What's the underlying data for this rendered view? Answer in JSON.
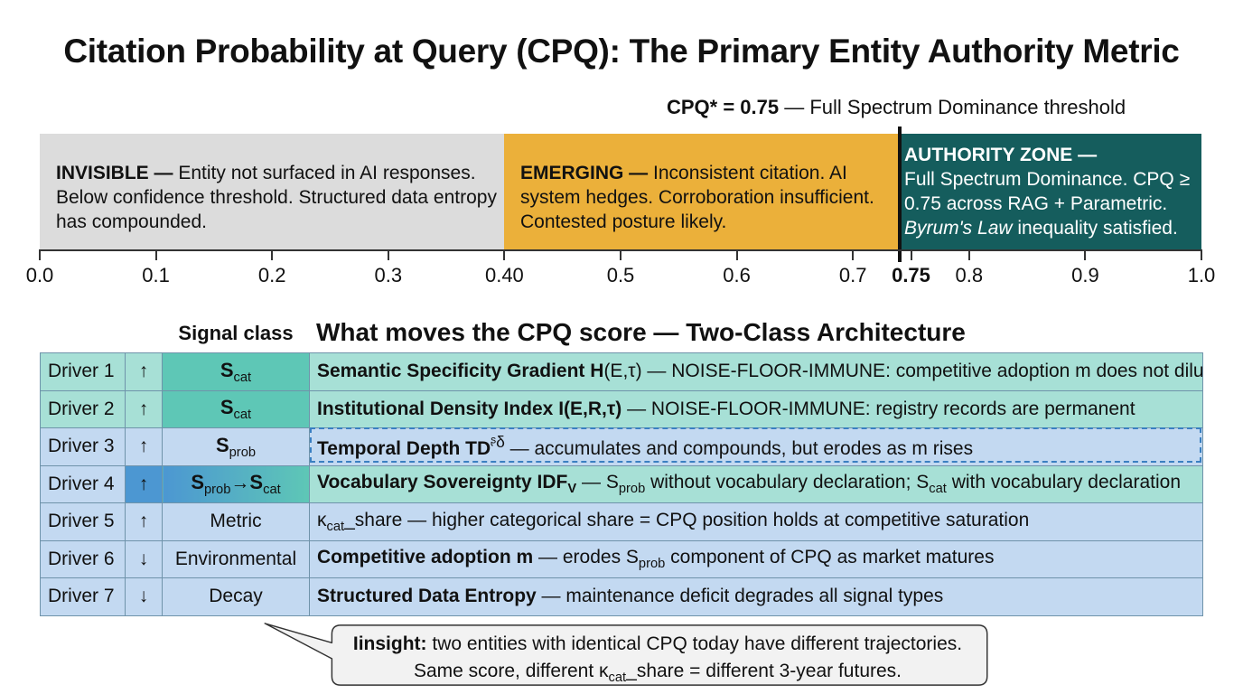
{
  "title": "Citation Probability at Query (CPQ): The Primary Entity Authority Metric",
  "threshold": {
    "label_bold": "CPQ* = 0.75",
    "label_rest": " — Full Spectrum Dominance threshold"
  },
  "zones": [
    {
      "name": "INVISIBLE —",
      "text": " Entity not surfaced in AI responses.  Below confidence threshold. Structured data entropy has compounded.",
      "range": [
        0.0,
        0.4
      ],
      "color": "#dcdcdc"
    },
    {
      "name": "EMERGING —",
      "text": " Inconsistent citation. AI system hedges. Corroboration insufficient. Contested posture likely.",
      "range": [
        0.4,
        0.75
      ],
      "color": "#ebb03a"
    },
    {
      "name": "AUTHORITY ZONE —",
      "text_line1": "Full Spectrum Dominance. CPQ ≥ 0.75 across RAG + Parametric.",
      "text_italic": "Byrum's Law",
      "text_line2": " inequality satisfied.",
      "range": [
        0.75,
        1.0
      ],
      "color": "#155d5d"
    }
  ],
  "axis_ticks": [
    {
      "label": "0.0",
      "value": 0.0
    },
    {
      "label": "0.1",
      "value": 0.1
    },
    {
      "label": "0.2",
      "value": 0.2
    },
    {
      "label": "0.3",
      "value": 0.3
    },
    {
      "label": "0.40",
      "value": 0.4
    },
    {
      "label": "0.5",
      "value": 0.5
    },
    {
      "label": "0.6",
      "value": 0.6
    },
    {
      "label": "0.7",
      "value": 0.7
    },
    {
      "label": "0.75",
      "value": 0.75,
      "bold": true
    },
    {
      "label": "0.8",
      "value": 0.8
    },
    {
      "label": "0.9",
      "value": 0.9
    },
    {
      "label": "1.0",
      "value": 1.0
    }
  ],
  "signal_class_header": "Signal class",
  "drivers_title": "What moves the CPQ score — Two-Class Architecture",
  "drivers": [
    {
      "label": "Driver 1",
      "arrow": "↑",
      "signal_main": "S",
      "signal_sub": "cat",
      "desc_bold": "Semantic Specificity Gradient H",
      "desc_rest": "(E,τ) — NOISE-FLOOR-IMMUNE: competitive adoption m does not dilute"
    },
    {
      "label": "Driver 2",
      "arrow": "↑",
      "signal_main": "S",
      "signal_sub": "cat",
      "desc_bold": "Institutional Density Index I(E,R,τ)",
      "desc_rest": " — NOISE-FLOOR-IMMUNE: registry records are permanent"
    },
    {
      "label": "Driver 3",
      "arrow": "↑",
      "signal_main": "S",
      "signal_sub": "prob",
      "desc_bold": "Temporal Depth TD",
      "desc_sup": "ᶳδ",
      "desc_rest": " — accumulates and compounds, but erodes as m rises"
    },
    {
      "label": "Driver 4",
      "arrow": "↑",
      "signal_main": "S",
      "signal_sub": "prob",
      "signal_arrow": "→",
      "signal_main2": "S",
      "signal_sub2": "cat",
      "desc_bold": "Vocabulary Sovereignty IDF",
      "desc_bold_sub": "V",
      "desc_a": " — S",
      "desc_a_sub": "prob",
      "desc_b": " without vocabulary declaration; S",
      "desc_b_sub": "cat",
      "desc_c": " with vocabulary declaration"
    },
    {
      "label": "Driver 5",
      "arrow": "↑",
      "signal_text": "Metric",
      "desc_k": "κ",
      "desc_k_sub": "cat",
      "desc_rest": "_share — higher categorical share = CPQ position holds at competitive saturation"
    },
    {
      "label": "Driver 6",
      "arrow": "↓",
      "signal_text": "Environmental",
      "desc_bold": "Competitive adoption m",
      "desc_a": " — erodes S",
      "desc_a_sub": "prob",
      "desc_rest": " component of CPQ as market matures"
    },
    {
      "label": "Driver 7",
      "arrow": "↓",
      "signal_text": "Decay",
      "desc_bold": "Structured Data Entropy",
      "desc_rest": " — maintenance deficit degrades all signal types"
    }
  ],
  "insight": {
    "bold": "Iinsight:",
    "line1": " two entities with identical CPQ today have different trajectories.",
    "line2_a": "Same score, different κ",
    "line2_sub": "cat",
    "line2_b": "_share = different 3-year futures."
  },
  "colors": {
    "invisible": "#dcdcdc",
    "emerging": "#ebb03a",
    "authority": "#155d5d",
    "scat": "#5ec7b6",
    "sprob": "#4c97d2",
    "row_blue": "#c3d9f1",
    "row_teal": "#a7e0d6"
  }
}
